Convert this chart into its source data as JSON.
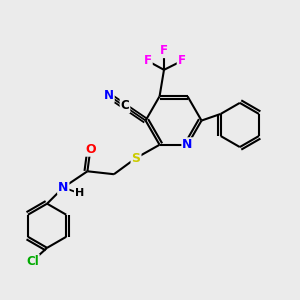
{
  "background_color": "#ebebeb",
  "bond_color": "#000000",
  "atom_colors": {
    "N": "#0000ff",
    "O": "#ff0000",
    "S": "#cccc00",
    "F": "#ff00ff",
    "Cl": "#00aa00",
    "C": "#000000",
    "H": "#000000"
  },
  "figsize": [
    3.0,
    3.0
  ],
  "dpi": 100
}
